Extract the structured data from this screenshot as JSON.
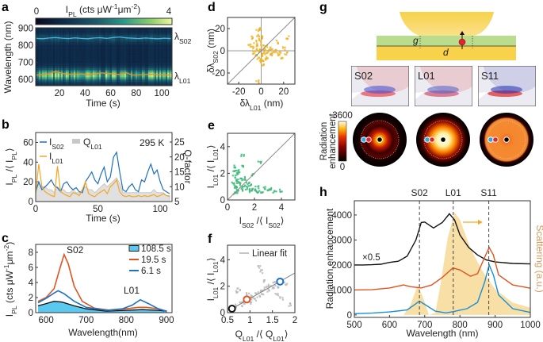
{
  "panel_labels": {
    "a": "a",
    "b": "b",
    "c": "c",
    "d": "d",
    "e": "e",
    "f": "f",
    "g": "g",
    "h": "h"
  },
  "chart_data": [
    {
      "panel": "a",
      "type": "heatmap",
      "colorbar_label": "I_{PL} (cts μW^{-1}μm^{-2})",
      "colorbar_ticks": [
        "0",
        "4"
      ],
      "colorbar_range": [
        0,
        4
      ],
      "xlabel": "Time (s)",
      "ylabel": "Wavelength (nm)",
      "xlim": [
        1.4,
        108
      ],
      "ylim": [
        563,
        902
      ],
      "xticks": [
        20,
        40,
        60,
        80,
        100
      ],
      "yticks": [
        600,
        700,
        800,
        900
      ],
      "line_labels": {
        "s02": "λ_{S02}",
        "l01": "λ_{L01}"
      },
      "t": [
        2,
        7,
        12,
        17,
        22,
        27,
        32,
        37,
        42,
        47,
        52,
        57,
        62,
        67,
        72,
        77,
        82,
        87,
        92,
        97,
        102,
        107
      ],
      "lambda_S02": [
        840,
        838,
        842,
        845,
        841,
        839,
        843,
        840,
        838,
        842,
        844,
        840,
        845,
        848,
        843,
        841,
        839,
        842,
        840,
        838,
        841,
        839
      ],
      "lambda_L01": [
        625,
        628,
        632,
        648,
        635,
        630,
        628,
        632,
        626,
        630,
        638,
        635,
        632,
        628,
        640,
        625,
        626,
        628,
        630,
        627,
        626,
        625
      ],
      "colors": {
        "s02": "#3fb4e8",
        "l01": "#f58a1f"
      }
    },
    {
      "panel": "b",
      "type": "line",
      "xlabel": "Time (s)",
      "ylabel": "I_{PL} /⟨ I_{PL}⟩",
      "y2label": "Q-factor",
      "annotation": "295 K",
      "xlim": [
        0,
        109.5
      ],
      "ylim": [
        0,
        70
      ],
      "y2lim": [
        5,
        28.2
      ],
      "xticks": [
        0,
        50,
        100
      ],
      "yticks": [
        0,
        20,
        40,
        60
      ],
      "y2ticks": [
        5,
        10,
        15,
        20,
        25
      ],
      "t_step": 2.5,
      "series": [
        {
          "name": "I_{S02}",
          "color": "#1f6fbf",
          "values": [
            10,
            20,
            12,
            15,
            18,
            22,
            16,
            14,
            10,
            18,
            20,
            15,
            12,
            14,
            10,
            9,
            20,
            25,
            30,
            22,
            18,
            28,
            35,
            20,
            25,
            45,
            50,
            30,
            12,
            10,
            15,
            18,
            12,
            10,
            22,
            20,
            30,
            38,
            28,
            32,
            20,
            12,
            10,
            8
          ]
        },
        {
          "name": "I_{L01}",
          "color": "#f5a623",
          "values": [
            8,
            38,
            15,
            10,
            8,
            6,
            5,
            36,
            10,
            8,
            6,
            5,
            9,
            8,
            6,
            12,
            20,
            8,
            6,
            5,
            8,
            10,
            12,
            8,
            15,
            18,
            22,
            10,
            6,
            5,
            6,
            5,
            5,
            6,
            5,
            6,
            5,
            6,
            7,
            5,
            6,
            8,
            6,
            5
          ]
        },
        {
          "name": "Q_{L01}",
          "color": "#c8c8c8",
          "axis": "right",
          "values": [
            9,
            11,
            10,
            10,
            9,
            9,
            8,
            10,
            9,
            9,
            8,
            8,
            9,
            8,
            8,
            9,
            10,
            9,
            9,
            8,
            9,
            10,
            11,
            10,
            11,
            12,
            13,
            11,
            8,
            8,
            8,
            8,
            8,
            8,
            8,
            8,
            8,
            8,
            9,
            8,
            8,
            8,
            7,
            7
          ]
        }
      ]
    },
    {
      "panel": "c",
      "type": "line",
      "xlabel": "Wavelength(nm)",
      "ylabel": "I_{PL} (cts μW^{-1}μm^{-2})",
      "xlim": [
        574,
        914
      ],
      "ylim": [
        0,
        9.05
      ],
      "xticks": [
        600,
        700,
        800,
        900
      ],
      "yticks": [
        0,
        2,
        4,
        6,
        8
      ],
      "annotations": [
        "S02",
        "L01"
      ],
      "series": [
        {
          "name": "108.5 s",
          "color": "#5bc8f0",
          "line": "#111111",
          "filled": true,
          "x": [
            580,
            600,
            620,
            640,
            670,
            700,
            750,
            800,
            840,
            880,
            900
          ],
          "y": [
            0.9,
            1.2,
            1.5,
            1.4,
            0.9,
            0.5,
            0.2,
            0.3,
            0.4,
            0.3,
            0.2
          ]
        },
        {
          "name": "19.5 s",
          "color": "#e0541f",
          "x": [
            580,
            600,
            620,
            635,
            645,
            655,
            670,
            690,
            720,
            760,
            800,
            830,
            850,
            880,
            900
          ],
          "y": [
            1.5,
            2.0,
            3.2,
            6.0,
            7.7,
            6.5,
            3.5,
            1.5,
            0.6,
            0.3,
            0.5,
            0.7,
            0.7,
            0.5,
            0.2
          ]
        },
        {
          "name": "6.1 s",
          "color": "#1a73c8",
          "x": [
            580,
            600,
            620,
            630,
            645,
            670,
            700,
            750,
            790,
            815,
            835,
            855,
            880,
            900
          ],
          "y": [
            1.3,
            1.9,
            2.6,
            2.9,
            2.5,
            1.5,
            0.7,
            0.3,
            0.5,
            1.0,
            1.7,
            1.2,
            0.5,
            0.2
          ]
        }
      ]
    },
    {
      "panel": "d",
      "type": "scatter",
      "xlabel": "δλ_{L01} (nm)",
      "ylabel": "δλ_{S02} (nm)",
      "xlim": [
        -30,
        30
      ],
      "ylim": [
        -30,
        30
      ],
      "xticks": [
        -20,
        0,
        20
      ],
      "yticks": [
        -20,
        0,
        20
      ],
      "color": "#f0b429",
      "points": [
        [
          -2,
          0
        ],
        [
          -4,
          5
        ],
        [
          -1,
          10
        ],
        [
          -3,
          18
        ],
        [
          -5,
          8
        ],
        [
          0,
          2
        ],
        [
          2,
          -3
        ],
        [
          -6,
          -2
        ],
        [
          1,
          -8
        ],
        [
          -2,
          -6
        ],
        [
          3,
          0
        ],
        [
          5,
          -2
        ],
        [
          8,
          -4
        ],
        [
          10,
          -3
        ],
        [
          12,
          0
        ],
        [
          15,
          -4
        ],
        [
          18,
          -6
        ],
        [
          20,
          2
        ],
        [
          24,
          12
        ],
        [
          22,
          -2
        ],
        [
          -8,
          3
        ],
        [
          -10,
          5
        ],
        [
          -3,
          14
        ],
        [
          -2,
          20
        ],
        [
          0,
          12
        ],
        [
          1,
          6
        ],
        [
          4,
          4
        ],
        [
          6,
          -6
        ],
        [
          -1,
          -10
        ],
        [
          -3,
          -28
        ],
        [
          2,
          -12
        ],
        [
          -7,
          12
        ],
        [
          14,
          8
        ],
        [
          16,
          -1
        ],
        [
          9,
          2
        ],
        [
          -5,
          -5
        ],
        [
          0,
          -4
        ],
        [
          3,
          -8
        ],
        [
          7,
          0
        ],
        [
          -4,
          1
        ]
      ]
    },
    {
      "panel": "e",
      "type": "scatter",
      "xlabel": "I_{S02} /⟨ I_{S02}⟩",
      "ylabel": "I_{L01} /⟨ I_{L01}⟩",
      "xlim": [
        0,
        5
      ],
      "ylim": [
        0,
        5
      ],
      "xticks": [
        0,
        2,
        4
      ],
      "yticks": [
        0,
        2,
        4
      ],
      "color": "#3cb878",
      "points": [
        [
          0.5,
          0.5
        ],
        [
          0.6,
          1.0
        ],
        [
          0.7,
          1.5
        ],
        [
          0.8,
          2.0
        ],
        [
          0.6,
          2.5
        ],
        [
          0.9,
          1.2
        ],
        [
          1.0,
          0.8
        ],
        [
          1.2,
          1.0
        ],
        [
          1.4,
          0.9
        ],
        [
          1.6,
          0.7
        ],
        [
          1.8,
          0.8
        ],
        [
          2.0,
          0.7
        ],
        [
          2.3,
          0.6
        ],
        [
          2.6,
          0.6
        ],
        [
          3.0,
          0.7
        ],
        [
          3.5,
          0.6
        ],
        [
          4.0,
          0.7
        ],
        [
          2.4,
          2.8
        ],
        [
          1.1,
          3.4
        ],
        [
          0.5,
          1.8
        ],
        [
          0.7,
          0.6
        ],
        [
          0.8,
          1.3
        ],
        [
          1.3,
          1.6
        ],
        [
          1.5,
          1.3
        ],
        [
          2.8,
          0.9
        ],
        [
          0.6,
          0.9
        ],
        [
          0.9,
          2.2
        ],
        [
          1.9,
          1.9
        ],
        [
          3.2,
          0.8
        ],
        [
          1.0,
          1.5
        ],
        [
          0.4,
          1.2
        ],
        [
          1.7,
          1.1
        ],
        [
          2.2,
          1.0
        ],
        [
          0.55,
          2.1
        ],
        [
          1.2,
          2.6
        ]
      ]
    },
    {
      "panel": "f",
      "type": "scatter",
      "xlabel": "Q_{L01} /⟨ Q_{L01}⟩",
      "ylabel": "I_{L01} /⟨ I_{L01}⟩",
      "legend": "Linear fit",
      "xlim": [
        0.5,
        2
      ],
      "ylim": [
        0,
        5.1
      ],
      "xticks": [
        0.5,
        1,
        1.5,
        2
      ],
      "yticks": [
        0,
        2,
        4
      ],
      "color": "#bbbbbb",
      "fit": [
        [
          0.55,
          0.2
        ],
        [
          2.0,
          3.0
        ]
      ],
      "highlights": [
        {
          "x": 0.6,
          "y": 0.3,
          "color": "#111111"
        },
        {
          "x": 0.93,
          "y": 1.0,
          "color": "#e0541f"
        },
        {
          "x": 1.67,
          "y": 2.35,
          "color": "#1a73c8"
        }
      ],
      "points": [
        [
          0.6,
          0.3
        ],
        [
          0.7,
          0.5
        ],
        [
          0.8,
          0.8
        ],
        [
          0.9,
          0.9
        ],
        [
          1.0,
          1.1
        ],
        [
          1.05,
          1.3
        ],
        [
          1.1,
          1.0
        ],
        [
          1.15,
          1.5
        ],
        [
          1.2,
          1.2
        ],
        [
          1.25,
          1.6
        ],
        [
          1.3,
          1.4
        ],
        [
          1.35,
          1.9
        ],
        [
          1.4,
          1.7
        ],
        [
          1.45,
          2.1
        ],
        [
          1.5,
          1.8
        ],
        [
          1.55,
          2.3
        ],
        [
          1.6,
          2.0
        ],
        [
          1.7,
          2.4
        ],
        [
          1.8,
          2.2
        ],
        [
          0.75,
          1.8
        ],
        [
          1.2,
          3.5
        ],
        [
          1.25,
          3.1
        ],
        [
          0.7,
          1.6
        ],
        [
          0.85,
          0.6
        ],
        [
          1.6,
          1.4
        ],
        [
          1.7,
          1.1
        ],
        [
          1.9,
          0.6
        ],
        [
          1.0,
          0.7
        ],
        [
          1.3,
          2.4
        ],
        [
          0.95,
          1.4
        ]
      ]
    },
    {
      "panel": "h",
      "type": "line",
      "xlabel": "Wavelength (nm)",
      "ylabel": "Radiation enhancement",
      "y2label": "Scattering (a.u.)",
      "scale_note": "×0.5",
      "xlim": [
        500,
        1000
      ],
      "ylim": [
        -100,
        4570
      ],
      "xticks": [
        500,
        600,
        700,
        800,
        900,
        1000
      ],
      "yticks": [
        0,
        1000,
        2000,
        3000,
        4000
      ],
      "modes": [
        {
          "label": "S02",
          "x": 685
        },
        {
          "label": "L01",
          "x": 781
        },
        {
          "label": "S11",
          "x": 882
        }
      ],
      "series": [
        {
          "color": "#111111",
          "x": [
            500,
            525,
            550,
            575,
            600,
            625,
            650,
            675,
            690,
            700,
            725,
            750,
            770,
            785,
            800,
            825,
            850,
            875,
            900,
            950,
            1000
          ],
          "y": [
            2000,
            2000,
            2010,
            2030,
            2100,
            2150,
            2350,
            3000,
            3700,
            3720,
            3480,
            3700,
            4050,
            3800,
            3200,
            2700,
            2400,
            2200,
            2120,
            2060,
            2040
          ]
        },
        {
          "color": "#e0541f",
          "x": [
            500,
            550,
            600,
            640,
            660,
            690,
            720,
            750,
            780,
            800,
            830,
            850,
            870,
            883,
            895,
            910,
            950,
            1000
          ],
          "y": [
            1000,
            1010,
            1080,
            1200,
            1130,
            1080,
            1200,
            1500,
            1880,
            1800,
            1550,
            1650,
            2300,
            2700,
            2400,
            1600,
            1200,
            1070
          ]
        },
        {
          "color": "#1a8fd6",
          "x": [
            500,
            550,
            600,
            650,
            670,
            685,
            700,
            730,
            760,
            780,
            820,
            850,
            870,
            883,
            895,
            910,
            950,
            1000
          ],
          "y": [
            50,
            70,
            120,
            200,
            400,
            550,
            420,
            150,
            80,
            130,
            250,
            500,
            1300,
            2000,
            1600,
            800,
            250,
            100
          ]
        }
      ],
      "scattering": {
        "color": "#f8dfa6",
        "label_color": "#d49a5c",
        "x": [
          500,
          640,
          660,
          680,
          695,
          712,
          730,
          745,
          765,
          785,
          800,
          830,
          860,
          900,
          950,
          1000
        ],
        "y": [
          0,
          0,
          0.1,
          0.29,
          0.17,
          0,
          0.02,
          0.3,
          0.75,
          1.0,
          0.93,
          0.65,
          0.45,
          0.25,
          0.12,
          0.07
        ]
      },
      "arrow_color": "#f5a623"
    }
  ],
  "schematic": {
    "gap_label": "g",
    "diameter_label": "d",
    "mode_maps": [
      "S02",
      "L01",
      "S11"
    ],
    "colorbar_ticks": [
      "3600",
      "0"
    ],
    "colorbar_label": [
      "Radiation",
      "enhancement"
    ],
    "colors": {
      "gold": "#f5cf45",
      "spacer": "#b9dc8d",
      "dipole": "#e8222a"
    }
  }
}
